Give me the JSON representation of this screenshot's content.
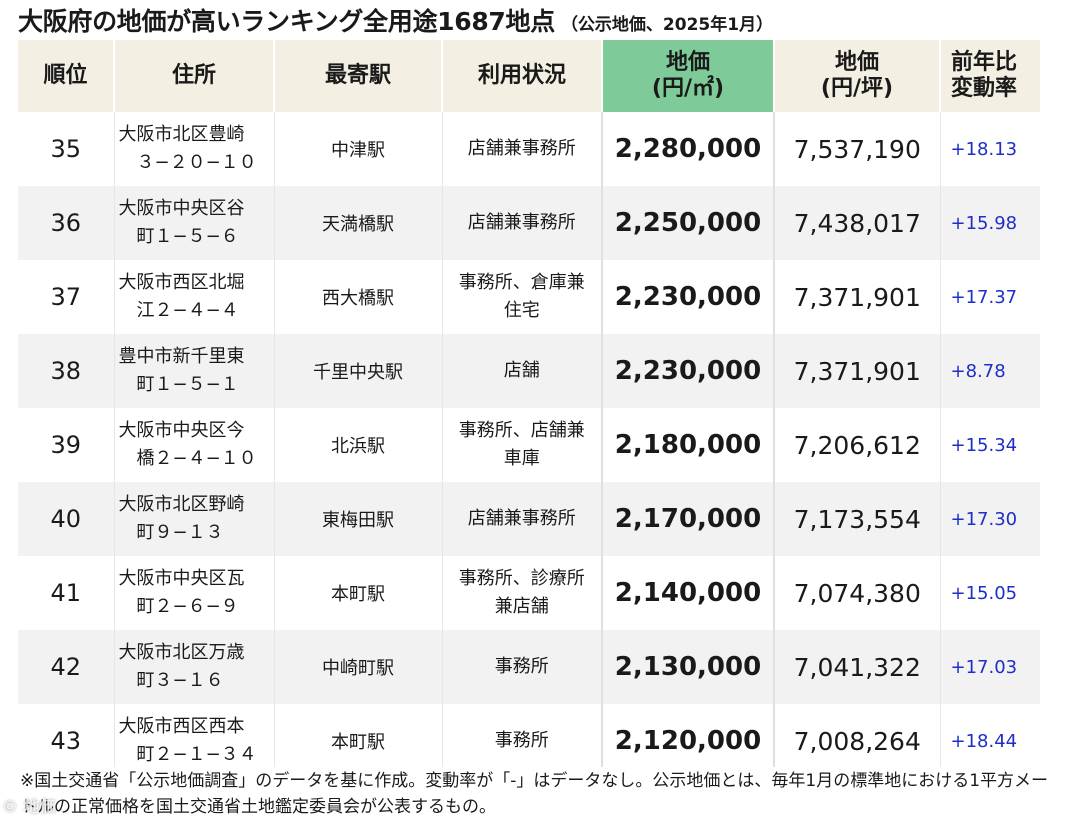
{
  "title": {
    "main": "大阪府の地価が高いランキング全用途1687地点",
    "sub": "（公示地価、2025年1月）"
  },
  "headers": {
    "rank": "順位",
    "address": "住所",
    "station": "最寄駅",
    "usage": "利用状況",
    "price_m2_line1": "地価",
    "price_m2_line2": "(円/㎡)",
    "price_tsubo_line1": "地価",
    "price_tsubo_line2": "(円/坪)",
    "change_line1": "前年比",
    "change_line2": "変動率"
  },
  "colors": {
    "header_bg": "#f3efe2",
    "header_highlight": "#7ecb99",
    "change_text": "#1e2ec8",
    "row_alt": "#f2f2f2"
  },
  "rows": [
    {
      "rank": "35",
      "address_1": "大阪市北区豊崎",
      "address_2": "３−２０−１０",
      "station": "中津駅",
      "usage_1": "店舗兼事務所",
      "usage_2": "",
      "price_m2": "2,280,000",
      "price_tsubo": "7,537,190",
      "change": "+18.13"
    },
    {
      "rank": "36",
      "address_1": "大阪市中央区谷",
      "address_2": "町１−５−６",
      "station": "天満橋駅",
      "usage_1": "店舗兼事務所",
      "usage_2": "",
      "price_m2": "2,250,000",
      "price_tsubo": "7,438,017",
      "change": "+15.98"
    },
    {
      "rank": "37",
      "address_1": "大阪市西区北堀",
      "address_2": "江２−４−４",
      "station": "西大橋駅",
      "usage_1": "事務所、倉庫兼",
      "usage_2": "住宅",
      "price_m2": "2,230,000",
      "price_tsubo": "7,371,901",
      "change": "+17.37"
    },
    {
      "rank": "38",
      "address_1": "豊中市新千里東",
      "address_2": "町１−５−１",
      "station": "千里中央駅",
      "usage_1": "店舗",
      "usage_2": "",
      "price_m2": "2,230,000",
      "price_tsubo": "7,371,901",
      "change": "+8.78"
    },
    {
      "rank": "39",
      "address_1": "大阪市中央区今",
      "address_2": "橋２−４−１０",
      "station": "北浜駅",
      "usage_1": "事務所、店舗兼",
      "usage_2": "車庫",
      "price_m2": "2,180,000",
      "price_tsubo": "7,206,612",
      "change": "+15.34"
    },
    {
      "rank": "40",
      "address_1": "大阪市北区野崎",
      "address_2": "町９−１３",
      "station": "東梅田駅",
      "usage_1": "店舗兼事務所",
      "usage_2": "",
      "price_m2": "2,170,000",
      "price_tsubo": "7,173,554",
      "change": "+17.30"
    },
    {
      "rank": "41",
      "address_1": "大阪市中央区瓦",
      "address_2": "町２−６−９",
      "station": "本町駅",
      "usage_1": "事務所、診療所",
      "usage_2": "兼店舗",
      "price_m2": "2,140,000",
      "price_tsubo": "7,074,380",
      "change": "+15.05"
    },
    {
      "rank": "42",
      "address_1": "大阪市北区万歳",
      "address_2": "町３−１６",
      "station": "中崎町駅",
      "usage_1": "事務所",
      "usage_2": "",
      "price_m2": "2,130,000",
      "price_tsubo": "7,041,322",
      "change": "+17.03"
    },
    {
      "rank": "43",
      "address_1": "大阪市西区西本",
      "address_2": "町２−１−３４",
      "station": "本町駅",
      "usage_1": "事務所",
      "usage_2": "",
      "price_m2": "2,120,000",
      "price_tsubo": "7,008,264",
      "change": "+18.44"
    }
  ],
  "footnote": "※国土交通省「公示地価調査」のデータを基に作成。変動率が「-」はデータなし。公示地価とは、毎年1月の標準地における1平方メートルの正常価格を国土交通省土地鑑定委員会が公表するもの。",
  "watermark": "© 地価"
}
